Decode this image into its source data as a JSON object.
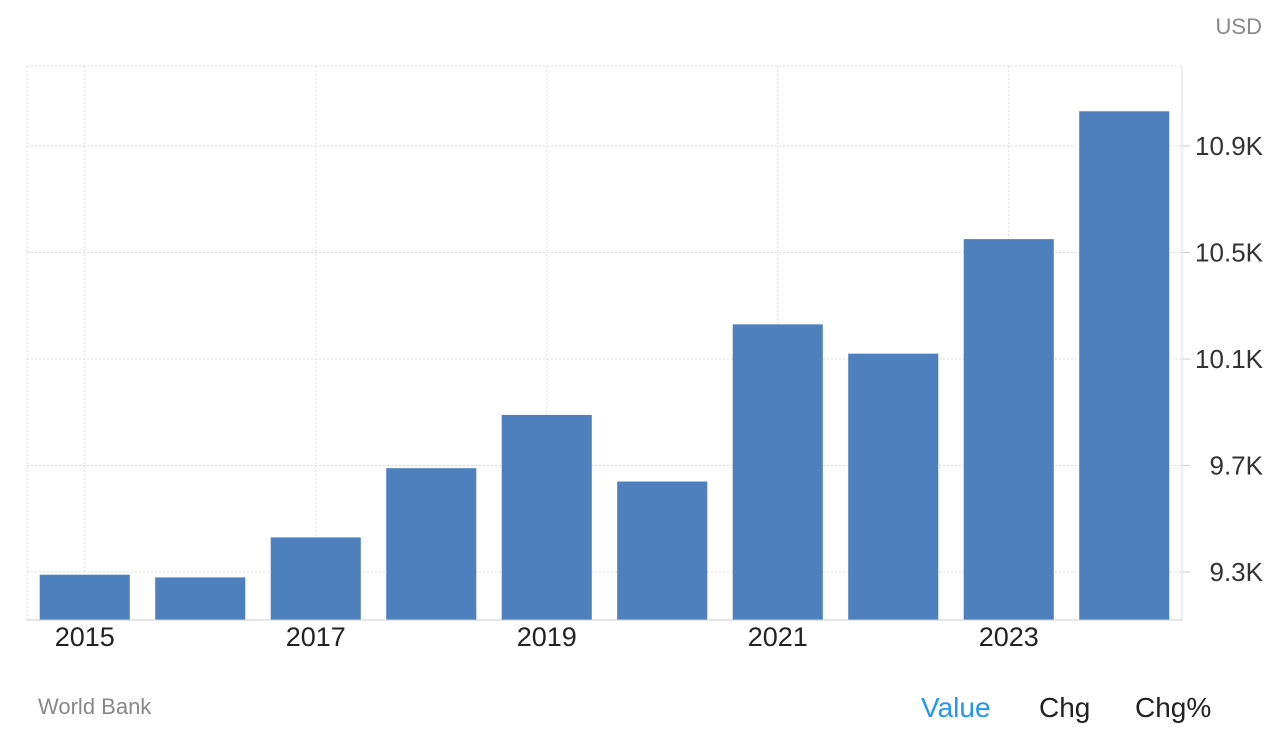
{
  "header": {
    "unit": "USD"
  },
  "footer": {
    "source": "World Bank",
    "tabs": [
      "Value",
      "Chg",
      "Chg%"
    ],
    "active_tab": "Value"
  },
  "colors": {
    "bar": "#4d80bc",
    "grid": "#dddddd",
    "active_tab": "#2196f3"
  },
  "chart_data": {
    "type": "bar",
    "categories": [
      "2015",
      "2016",
      "2017",
      "2018",
      "2019",
      "2020",
      "2021",
      "2022",
      "2023",
      "2024"
    ],
    "x_tick_labels": [
      "2015",
      "2017",
      "2019",
      "2021",
      "2023"
    ],
    "values": [
      9.29,
      9.28,
      9.43,
      9.69,
      9.89,
      9.64,
      10.23,
      10.12,
      10.55,
      11.03
    ],
    "value_unit": "K USD",
    "y_ticks": [
      9.3,
      9.7,
      10.1,
      10.5,
      10.9
    ],
    "y_tick_labels": [
      "9.3K",
      "9.7K",
      "10.1K",
      "10.5K",
      "10.9K"
    ],
    "ylim": [
      9.12,
      11.2
    ],
    "axis_position": "right",
    "grid": true
  }
}
